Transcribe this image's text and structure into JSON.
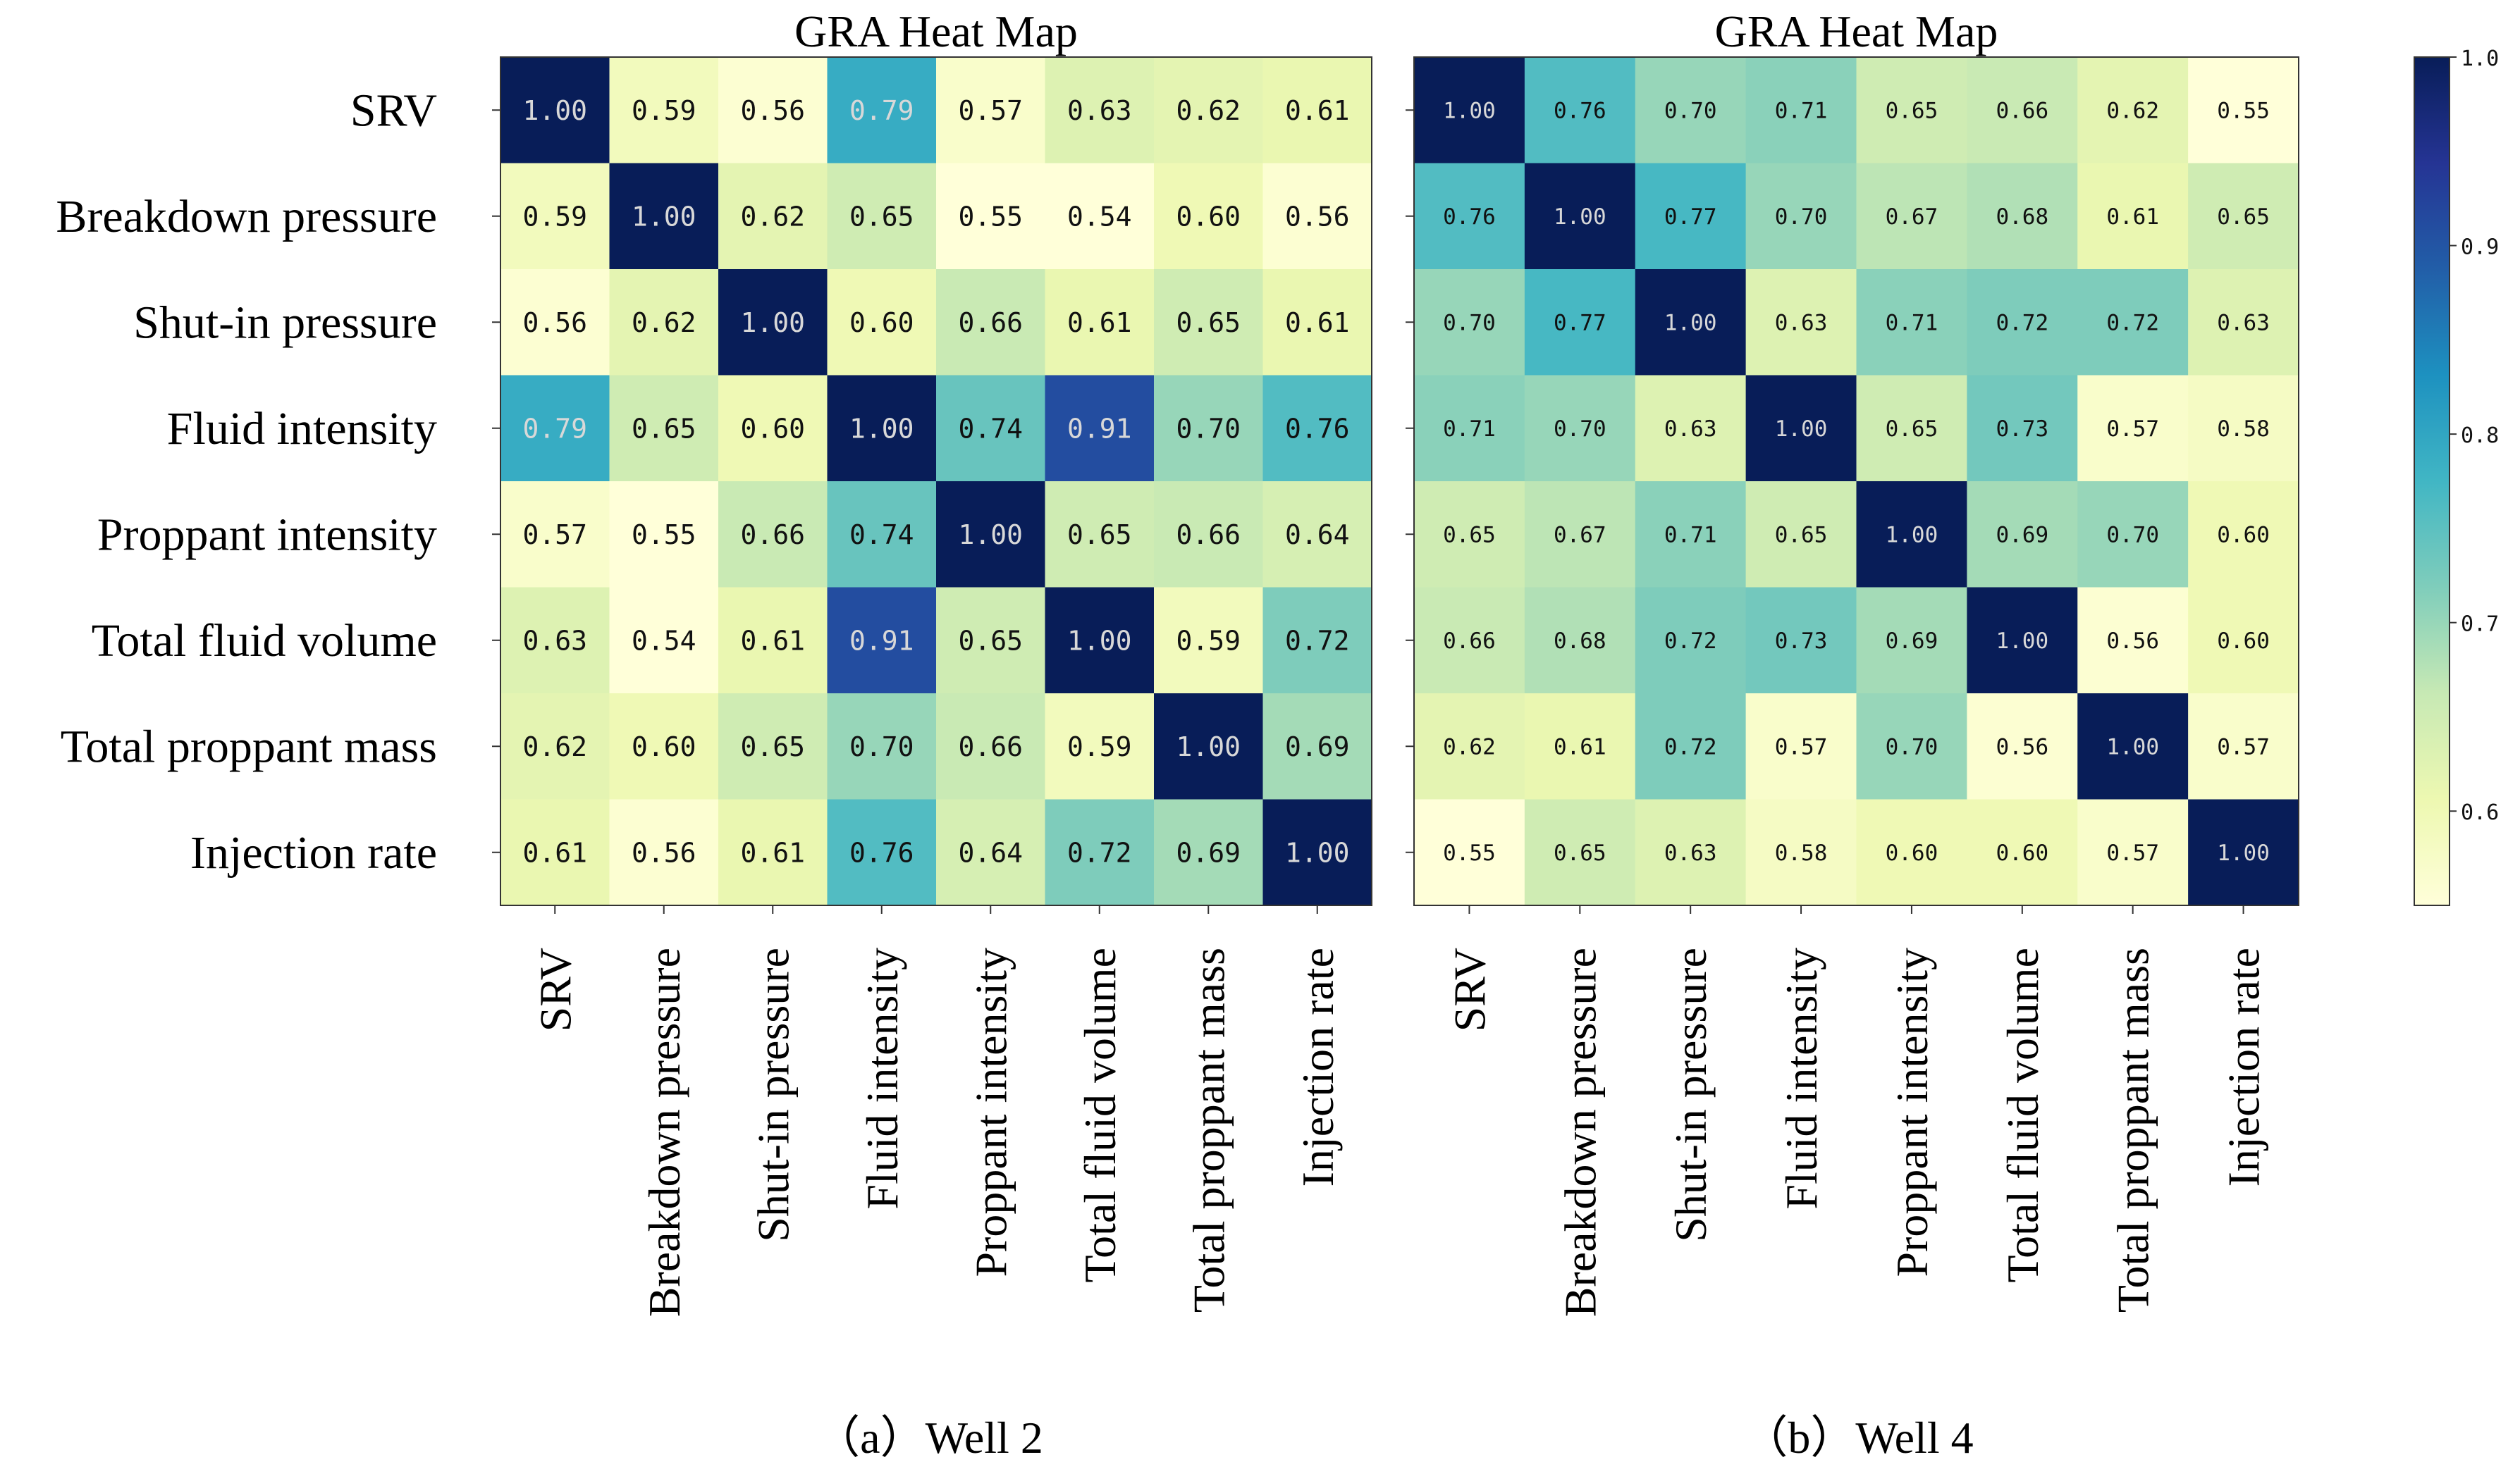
{
  "chart_data": [
    {
      "type": "heatmap",
      "title": "GRA Heat Map",
      "caption": "（a）Well 2",
      "row_labels": [
        "SRV",
        "Breakdown pressure",
        "Shut-in pressure",
        "Fluid intensity",
        "Proppant intensity",
        "Total fluid volume",
        "Total proppant mass",
        "Injection rate"
      ],
      "col_labels": [
        "SRV",
        "Breakdown pressure",
        "Shut-in pressure",
        "Fluid intensity",
        "Proppant intensity",
        "Total fluid volume",
        "Total proppant mass",
        "Injection rate"
      ],
      "matrix": [
        [
          1.0,
          0.59,
          0.56,
          0.79,
          0.57,
          0.63,
          0.62,
          0.61
        ],
        [
          0.59,
          1.0,
          0.62,
          0.65,
          0.55,
          0.54,
          0.6,
          0.56
        ],
        [
          0.56,
          0.62,
          1.0,
          0.6,
          0.66,
          0.61,
          0.65,
          0.61
        ],
        [
          0.79,
          0.65,
          0.6,
          1.0,
          0.74,
          0.91,
          0.7,
          0.76
        ],
        [
          0.57,
          0.55,
          0.66,
          0.74,
          1.0,
          0.65,
          0.66,
          0.64
        ],
        [
          0.63,
          0.54,
          0.61,
          0.91,
          0.65,
          1.0,
          0.59,
          0.72
        ],
        [
          0.62,
          0.6,
          0.65,
          0.7,
          0.66,
          0.59,
          1.0,
          0.69
        ],
        [
          0.61,
          0.56,
          0.61,
          0.76,
          0.64,
          0.72,
          0.69,
          1.0
        ]
      ]
    },
    {
      "type": "heatmap",
      "title": "GRA Heat Map",
      "caption": "（b）Well 4",
      "row_labels": [
        "SRV",
        "Breakdown pressure",
        "Shut-in pressure",
        "Fluid intensity",
        "Proppant intensity",
        "Total fluid volume",
        "Total proppant mass",
        "Injection rate"
      ],
      "col_labels": [
        "SRV",
        "Breakdown pressure",
        "Shut-in pressure",
        "Fluid intensity",
        "Proppant intensity",
        "Total fluid volume",
        "Total proppant mass",
        "Injection rate"
      ],
      "matrix": [
        [
          1.0,
          0.76,
          0.7,
          0.71,
          0.65,
          0.66,
          0.62,
          0.55
        ],
        [
          0.76,
          1.0,
          0.77,
          0.7,
          0.67,
          0.68,
          0.61,
          0.65
        ],
        [
          0.7,
          0.77,
          1.0,
          0.63,
          0.71,
          0.72,
          0.72,
          0.63
        ],
        [
          0.71,
          0.7,
          0.63,
          1.0,
          0.65,
          0.73,
          0.57,
          0.58
        ],
        [
          0.65,
          0.67,
          0.71,
          0.65,
          1.0,
          0.69,
          0.7,
          0.6
        ],
        [
          0.66,
          0.68,
          0.72,
          0.73,
          0.69,
          1.0,
          0.56,
          0.6
        ],
        [
          0.62,
          0.61,
          0.72,
          0.57,
          0.7,
          0.56,
          1.0,
          0.57
        ],
        [
          0.55,
          0.65,
          0.63,
          0.58,
          0.6,
          0.6,
          0.57,
          1.0
        ]
      ]
    }
  ],
  "colorbar": {
    "min": 0.55,
    "max": 1.0,
    "ticks": [
      0.6,
      0.7,
      0.8,
      0.9,
      1.0
    ],
    "tick_labels": [
      "0.6",
      "0.7",
      "0.8",
      "0.9",
      "1.0"
    ],
    "colormap": "YlGnBu",
    "stops": [
      "#ffffd9",
      "#edf8b1",
      "#c7e9b4",
      "#7fcdbb",
      "#41b6c4",
      "#1d91c0",
      "#225ea8",
      "#253494",
      "#081d58"
    ]
  }
}
